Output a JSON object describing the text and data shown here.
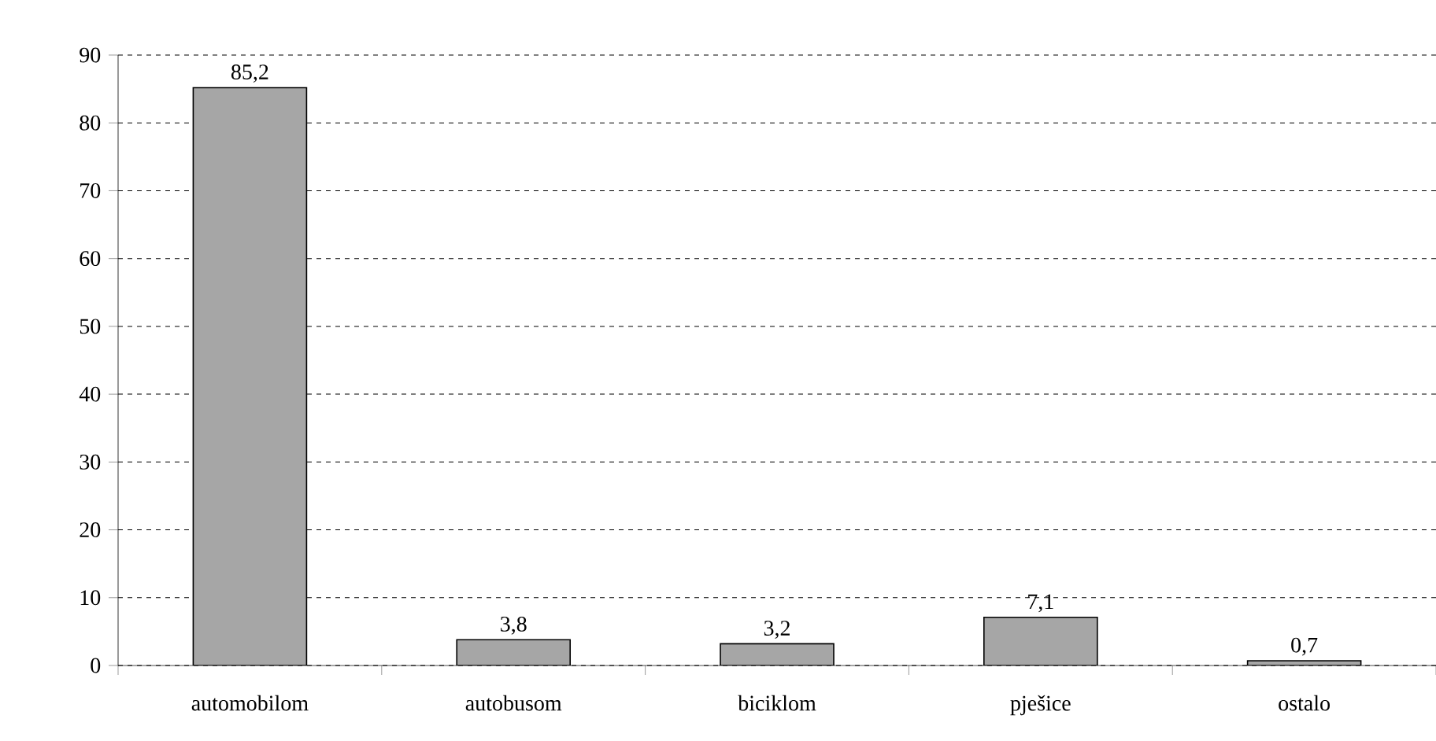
{
  "chart_data": {
    "type": "bar",
    "categories": [
      "automobilom",
      "autobusom",
      "biciklom",
      "pješice",
      "ostalo"
    ],
    "values": [
      85.2,
      3.8,
      3.2,
      7.1,
      0.7
    ],
    "value_labels": [
      "85,2",
      "3,8",
      "3,2",
      "7,1",
      "0,7"
    ],
    "color": "#a6a6a6",
    "ylim": [
      0,
      90
    ],
    "yticks": [
      0,
      10,
      20,
      30,
      40,
      50,
      60,
      70,
      80,
      90
    ],
    "grid": "y"
  }
}
